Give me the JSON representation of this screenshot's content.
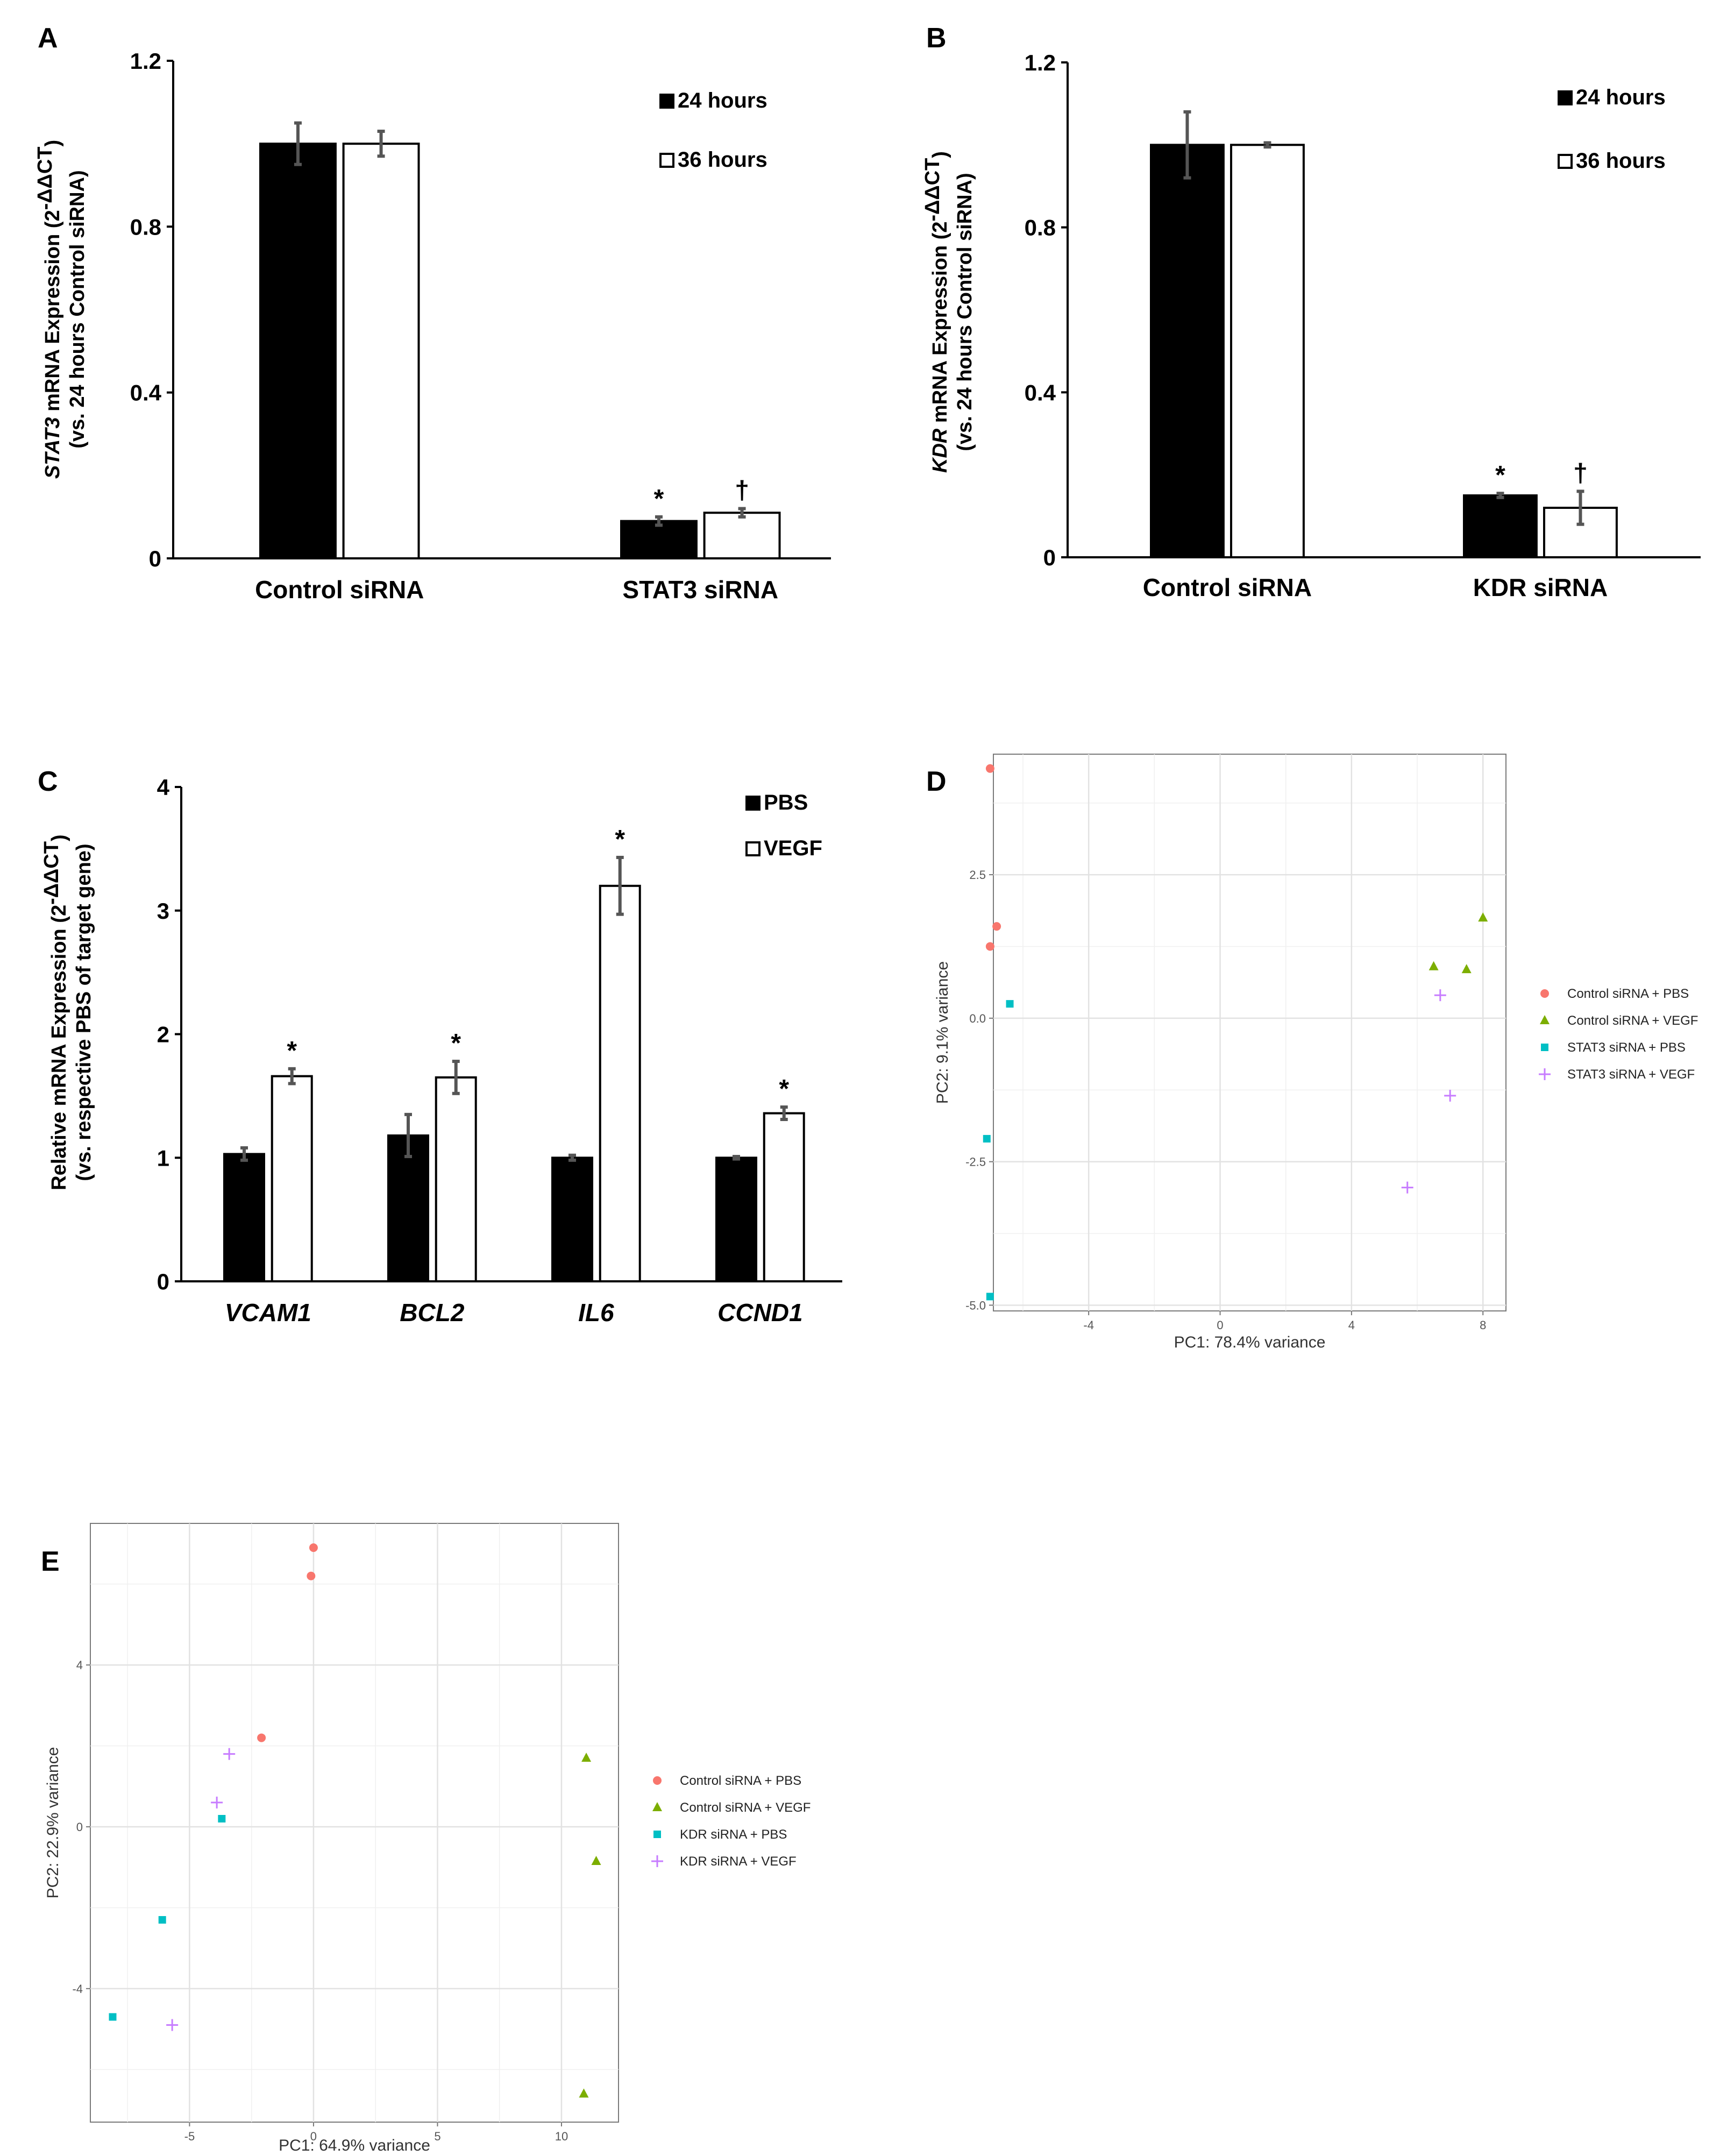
{
  "chart_data": [
    {
      "panel": "A",
      "type": "bar",
      "ylabel_line1_italic": "STAT3",
      "ylabel_line1_rest": " mRNA Expression (2",
      "ylabel_sup": "-ΔΔCT",
      "ylabel_line1_close": ")",
      "ylabel_line2": "(vs. 24 hours Control siRNA)",
      "ylim": [
        0,
        1.2
      ],
      "yticks": [
        0,
        0.4,
        0.8,
        1.2
      ],
      "ytick_labels": [
        "0",
        "0.4",
        "0.8",
        "1.2"
      ],
      "categories": [
        "Control siRNA",
        "STAT3 siRNA"
      ],
      "category_italic": false,
      "series": [
        {
          "name": "24 hours",
          "fill": "#000000",
          "values": [
            1.0,
            0.09
          ],
          "errors": [
            0.05,
            0.01
          ],
          "marks": [
            "",
            "*"
          ]
        },
        {
          "name": "36 hours",
          "fill": "#ffffff",
          "values": [
            1.0,
            0.11
          ],
          "errors": [
            0.03,
            0.01
          ],
          "marks": [
            "",
            "†"
          ]
        }
      ],
      "legend_labels": [
        "24 hours",
        "36 hours"
      ]
    },
    {
      "panel": "B",
      "type": "bar",
      "ylabel_line1_italic": "KDR",
      "ylabel_line1_rest": " mRNA Expression (2",
      "ylabel_sup": "-ΔΔCT",
      "ylabel_line1_close": ")",
      "ylabel_line2": "(vs. 24 hours Control siRNA)",
      "ylim": [
        0,
        1.2
      ],
      "yticks": [
        0,
        0.4,
        0.8,
        1.2
      ],
      "ytick_labels": [
        "0",
        "0.4",
        "0.8",
        "1.2"
      ],
      "categories": [
        "Control siRNA",
        "KDR siRNA"
      ],
      "category_italic": false,
      "series": [
        {
          "name": "24 hours",
          "fill": "#000000",
          "values": [
            1.0,
            0.15
          ],
          "errors": [
            0.08,
            0.005
          ],
          "marks": [
            "",
            "*"
          ]
        },
        {
          "name": "36 hours",
          "fill": "#ffffff",
          "values": [
            1.0,
            0.12
          ],
          "errors": [
            0.005,
            0.04
          ],
          "marks": [
            "",
            "†"
          ]
        }
      ],
      "legend_labels": [
        "24 hours",
        "36 hours"
      ]
    },
    {
      "panel": "C",
      "type": "bar",
      "ylabel_line1_italic": "",
      "ylabel_line1_rest": "Relative mRNA Expression (2",
      "ylabel_sup": "-ΔΔCT",
      "ylabel_line1_close": ")",
      "ylabel_line2": "(vs. respective PBS of target gene)",
      "ylim": [
        0,
        4
      ],
      "yticks": [
        0,
        1,
        2,
        3,
        4
      ],
      "ytick_labels": [
        "0",
        "1",
        "2",
        "3",
        "4"
      ],
      "categories": [
        "VCAM1",
        "BCL2",
        "IL6",
        "CCND1"
      ],
      "category_italic": true,
      "series": [
        {
          "name": "PBS",
          "fill": "#000000",
          "values": [
            1.03,
            1.18,
            1.0,
            1.0
          ],
          "errors": [
            0.05,
            0.17,
            0.02,
            0.01
          ],
          "marks": [
            "",
            "",
            "",
            ""
          ]
        },
        {
          "name": "VEGF",
          "fill": "#ffffff",
          "values": [
            1.66,
            1.65,
            3.2,
            1.36
          ],
          "errors": [
            0.06,
            0.13,
            0.23,
            0.05
          ],
          "marks": [
            "*",
            "*",
            "*",
            "*"
          ]
        }
      ],
      "legend_labels": [
        "PBS",
        "VEGF"
      ]
    },
    {
      "panel": "D",
      "type": "scatter",
      "xlabel": "PC1: 78.4% variance",
      "ylabel": "PC2: 9.1% variance",
      "xlim": [
        -6.9,
        8.7
      ],
      "ylim": [
        -5.1,
        4.6
      ],
      "xticks": [
        -4,
        0,
        4,
        8
      ],
      "xtick_labels": [
        "-4",
        "0",
        "4",
        "8"
      ],
      "yticks": [
        -5.0,
        -2.5,
        0.0,
        2.5
      ],
      "ytick_labels": [
        "-5.0",
        "-2.5",
        "0.0",
        "2.5"
      ],
      "groups": [
        {
          "name": "Control siRNA + PBS",
          "color": "#F8766D",
          "shape": "circle",
          "points": [
            [
              -7.0,
              4.35
            ],
            [
              -6.8,
              1.6
            ],
            [
              -7.0,
              1.25
            ]
          ]
        },
        {
          "name": "Control siRNA + VEGF",
          "color": "#7CAE00",
          "shape": "triangle",
          "points": [
            [
              8.0,
              1.75
            ],
            [
              6.5,
              0.9
            ],
            [
              7.5,
              0.85
            ]
          ]
        },
        {
          "name": "STAT3 siRNA + PBS",
          "color": "#00BFC4",
          "shape": "square",
          "points": [
            [
              -6.4,
              0.25
            ],
            [
              -7.1,
              -2.1
            ],
            [
              -7.0,
              -4.85
            ]
          ]
        },
        {
          "name": "STAT3 siRNA + VEGF",
          "color": "#C77CFF",
          "shape": "plus",
          "points": [
            [
              6.7,
              0.4
            ],
            [
              7.0,
              -1.35
            ],
            [
              5.7,
              -2.95
            ]
          ]
        }
      ]
    },
    {
      "panel": "E",
      "type": "scatter",
      "xlabel": "PC1: 64.9% variance",
      "ylabel": "PC2: 22.9% variance",
      "xlim": [
        -9.0,
        12.3
      ],
      "ylim": [
        -7.3,
        7.5
      ],
      "xticks": [
        -5,
        0,
        5,
        10
      ],
      "xtick_labels": [
        "-5",
        "0",
        "5",
        "10"
      ],
      "yticks": [
        -4,
        0,
        4
      ],
      "ytick_labels": [
        "-4",
        "0",
        "4"
      ],
      "groups": [
        {
          "name": "Control siRNA + PBS",
          "color": "#F8766D",
          "shape": "circle",
          "points": [
            [
              0.0,
              6.9
            ],
            [
              -0.1,
              6.2
            ],
            [
              -2.1,
              2.2
            ]
          ]
        },
        {
          "name": "Control siRNA + VEGF",
          "color": "#7CAE00",
          "shape": "triangle",
          "points": [
            [
              11.0,
              1.7
            ],
            [
              11.4,
              -0.85
            ],
            [
              10.9,
              -6.6
            ]
          ]
        },
        {
          "name": "KDR siRNA + PBS",
          "color": "#00BFC4",
          "shape": "square",
          "points": [
            [
              -3.7,
              0.2
            ],
            [
              -6.1,
              -2.3
            ],
            [
              -8.1,
              -4.7
            ]
          ]
        },
        {
          "name": "KDR siRNA + VEGF",
          "color": "#C77CFF",
          "shape": "plus",
          "points": [
            [
              -3.4,
              1.8
            ],
            [
              -3.9,
              0.6
            ],
            [
              -5.7,
              -4.9
            ]
          ]
        }
      ]
    }
  ]
}
